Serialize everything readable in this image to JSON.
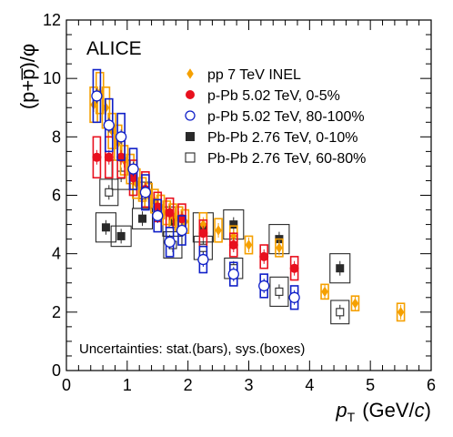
{
  "chart_data": {
    "type": "scatter",
    "title": "ALICE",
    "ylabel": "(p+p̅)/φ",
    "xlabel_main": "p",
    "xlabel_sub": "T",
    "xlabel_unit_pre": "(GeV/",
    "xlabel_unit_c": "c",
    "xlabel_unit_post": ")",
    "xlim": [
      0,
      6
    ],
    "ylim": [
      0,
      12
    ],
    "x_ticks": [
      "0",
      "1",
      "2",
      "3",
      "4",
      "5",
      "6"
    ],
    "y_ticks": [
      "0",
      "2",
      "4",
      "6",
      "8",
      "10",
      "12"
    ],
    "legend_position": "top-right",
    "annotation": "Uncertainties: stat.(bars), sys.(boxes)",
    "series": [
      {
        "name": "pp 7 TeV INEL",
        "marker": "diamond",
        "color": "#f5a000",
        "x": [
          0.45,
          0.55,
          0.65,
          0.75,
          0.85,
          0.95,
          1.05,
          1.15,
          1.25,
          1.35,
          1.45,
          1.55,
          1.65,
          1.75,
          1.85,
          1.95,
          2.25,
          2.5,
          2.75,
          3.0,
          3.5,
          4.25,
          4.75,
          5.5
        ],
        "y": [
          9.1,
          9.5,
          9.0,
          8.2,
          7.8,
          7.2,
          6.9,
          6.4,
          6.2,
          6.0,
          5.8,
          5.6,
          5.4,
          5.3,
          5.2,
          5.1,
          5.0,
          4.8,
          4.6,
          4.3,
          4.2,
          2.7,
          2.3,
          2.0
        ],
        "sys": [
          0.6,
          0.7,
          0.7,
          0.6,
          0.6,
          0.5,
          0.5,
          0.5,
          0.4,
          0.4,
          0.4,
          0.4,
          0.4,
          0.4,
          0.4,
          0.4,
          0.4,
          0.4,
          0.35,
          0.3,
          0.3,
          0.25,
          0.25,
          0.3
        ]
      },
      {
        "name": "p-Pb 5.02 TeV, 0-5%",
        "marker": "circle-filled",
        "color": "#e8101e",
        "x": [
          0.5,
          0.7,
          0.9,
          1.1,
          1.3,
          1.5,
          1.7,
          1.9,
          2.25,
          2.75,
          3.25,
          3.75
        ],
        "y": [
          7.3,
          7.3,
          7.3,
          6.6,
          6.2,
          5.6,
          5.4,
          5.2,
          4.7,
          4.3,
          3.9,
          3.5
        ],
        "sys": [
          0.7,
          0.7,
          0.7,
          0.6,
          0.6,
          0.5,
          0.5,
          0.5,
          0.45,
          0.4,
          0.4,
          0.4
        ]
      },
      {
        "name": "p-Pb 5.02 TeV, 80-100%",
        "marker": "circle-open",
        "color": "#1020c8",
        "x": [
          0.5,
          0.7,
          0.9,
          1.1,
          1.3,
          1.5,
          1.7,
          1.9,
          2.25,
          2.75,
          3.25,
          3.75
        ],
        "y": [
          9.4,
          8.4,
          8.0,
          6.9,
          6.1,
          5.3,
          4.4,
          4.8,
          3.8,
          3.3,
          2.9,
          2.5
        ],
        "sys": [
          0.9,
          0.9,
          0.8,
          0.7,
          0.6,
          0.55,
          0.5,
          0.5,
          0.45,
          0.4,
          0.4,
          0.4
        ]
      },
      {
        "name": "Pb-Pb 2.76 TeV, 0-10%",
        "marker": "square-filled",
        "color": "#2a2a2a",
        "x": [
          0.65,
          0.9,
          1.25,
          1.75,
          2.25,
          2.75,
          3.5,
          4.5
        ],
        "y": [
          4.9,
          4.6,
          5.2,
          5.1,
          4.9,
          5.0,
          4.5,
          3.5
        ],
        "sys": [
          0.5,
          0.35,
          0.35,
          0.5,
          0.5,
          0.5,
          0.5,
          0.5
        ]
      },
      {
        "name": "Pb-Pb 2.76 TeV, 60-80%",
        "marker": "square-open",
        "color": "#2a2a2a",
        "x": [
          0.7,
          0.9,
          1.25,
          1.75,
          2.25,
          2.75,
          3.5,
          4.5
        ],
        "y": [
          6.1,
          6.7,
          6.0,
          4.3,
          4.2,
          3.5,
          2.7,
          2.0
        ],
        "sys": [
          0.45,
          0.5,
          0.45,
          0.45,
          0.4,
          0.35,
          0.5,
          0.4
        ]
      }
    ]
  }
}
